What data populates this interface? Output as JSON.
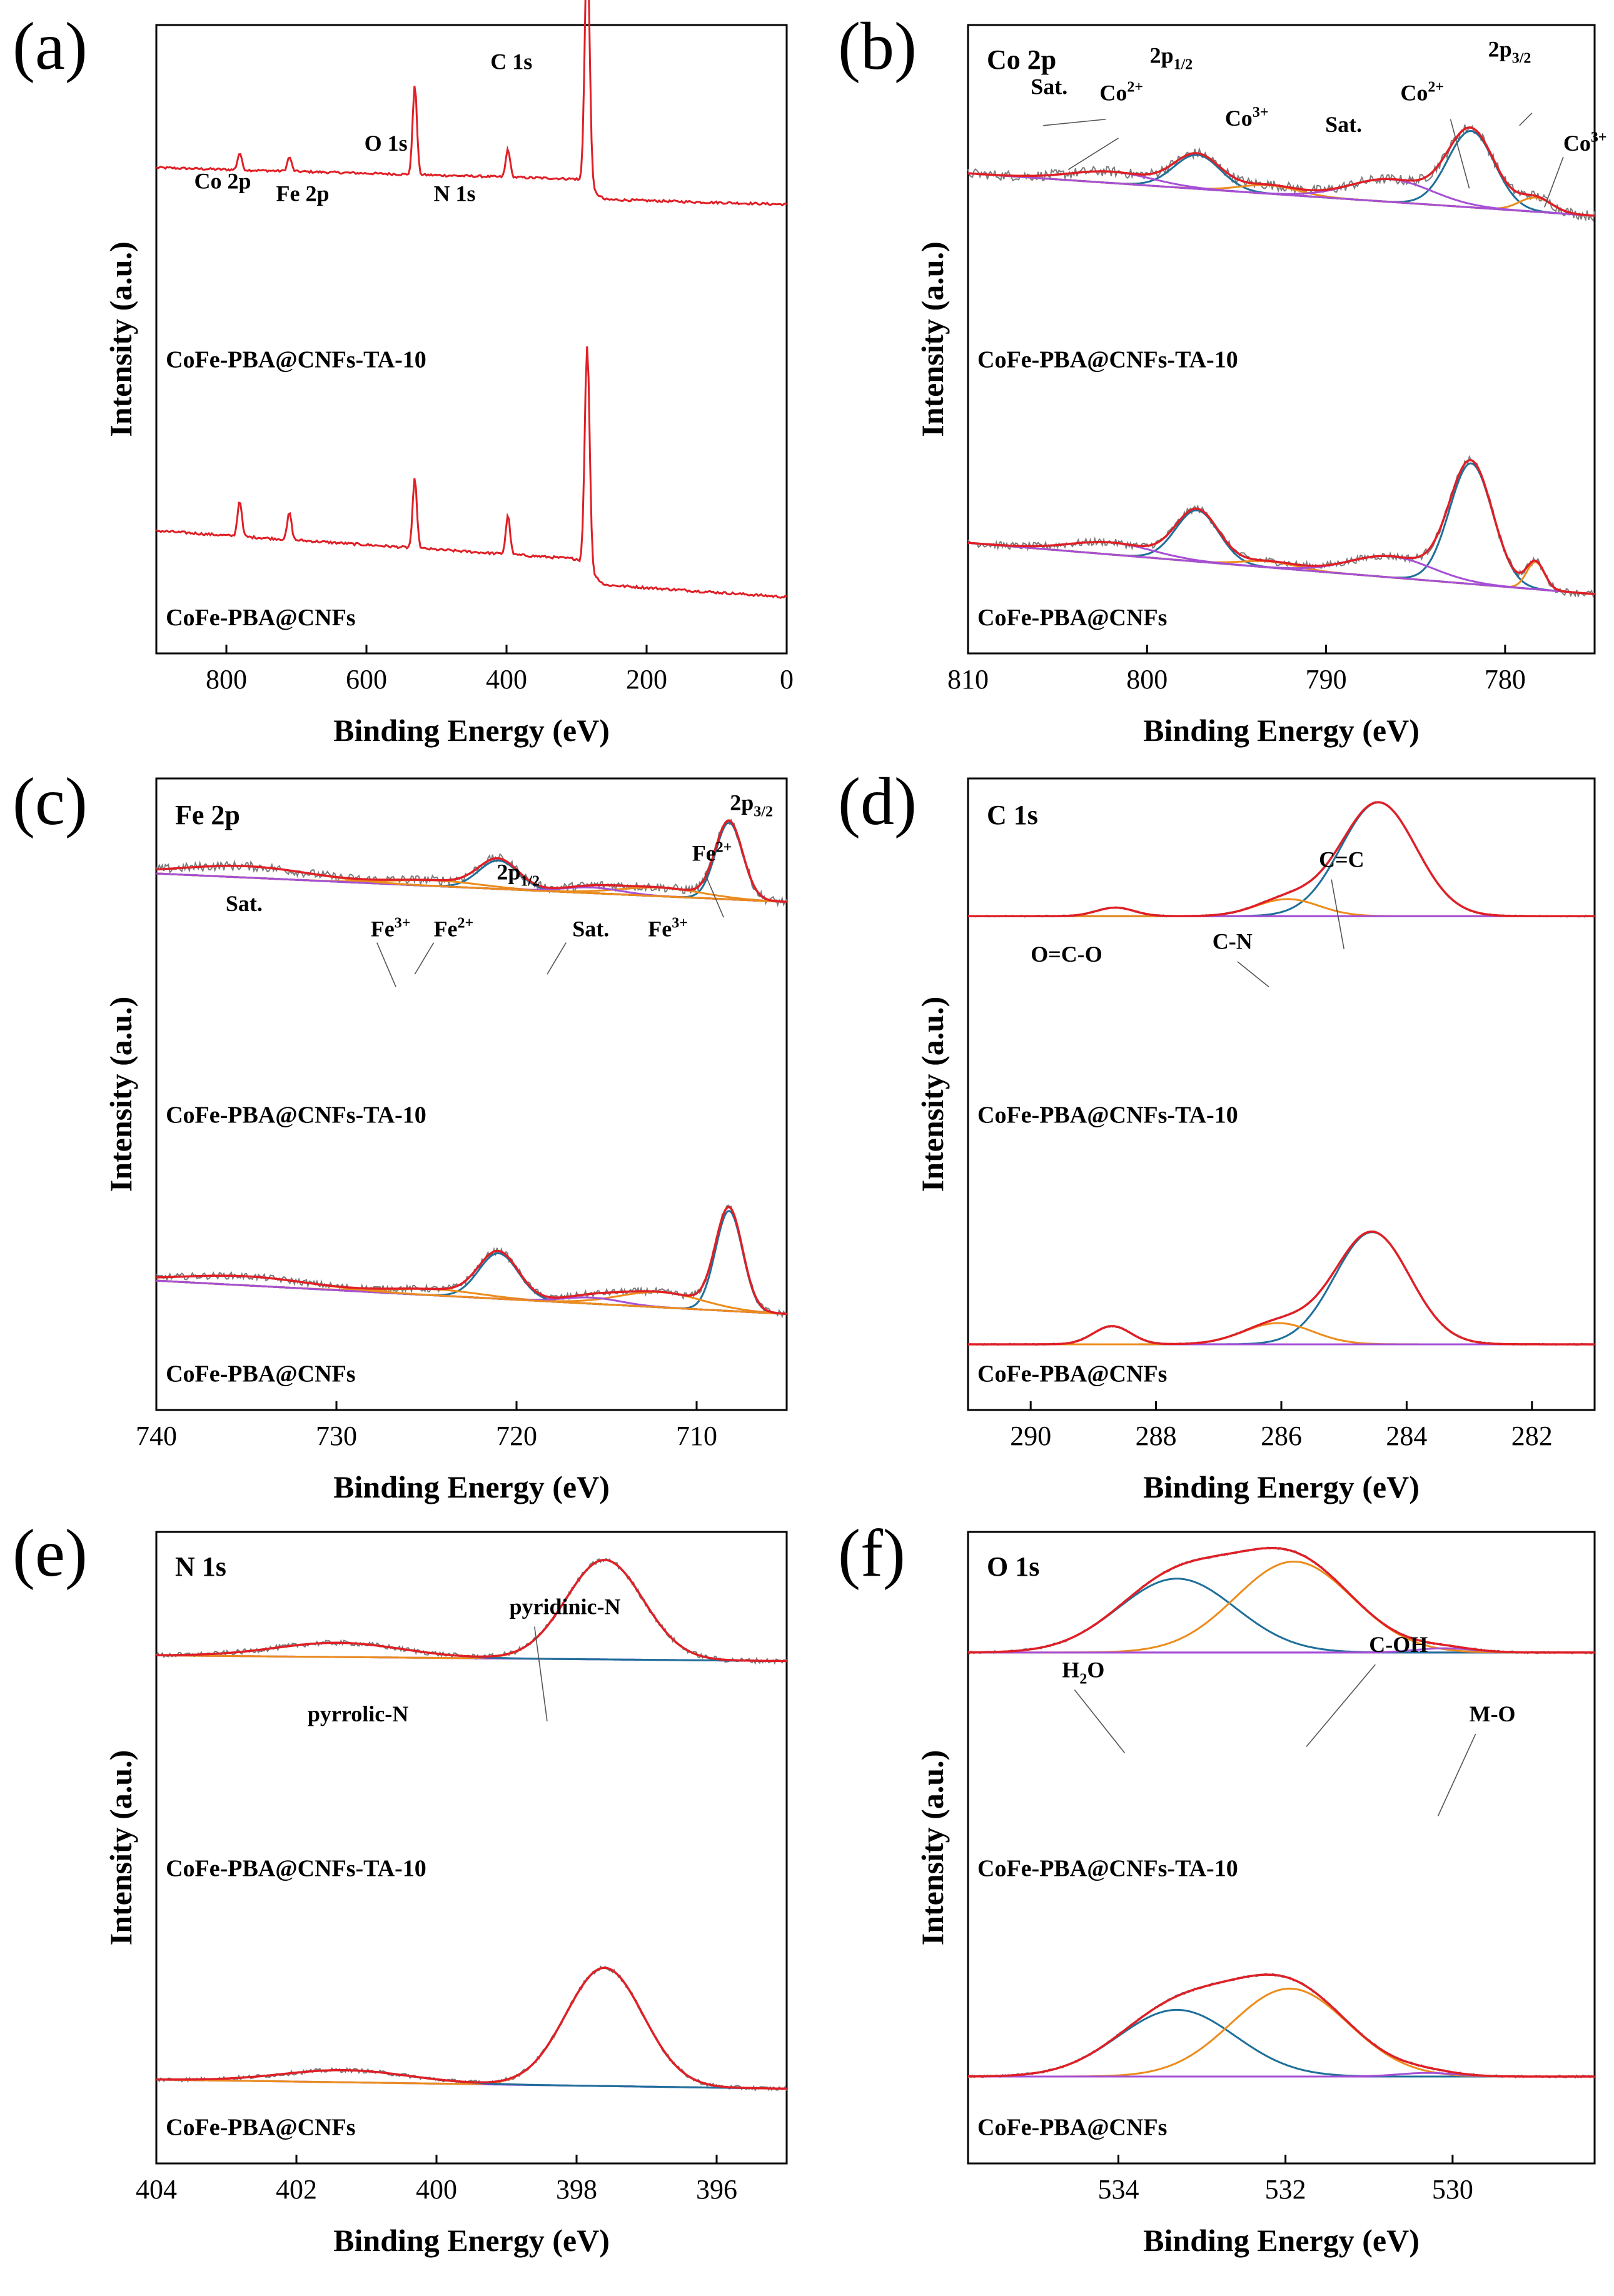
{
  "colors": {
    "raw": "#7a7a7a",
    "envelope": "#e01f26",
    "survey": "#e01f26",
    "background": "#8a3cd0",
    "blue": "#1f6f9a",
    "orange": "#ec8c1c",
    "violet": "#a64fd6",
    "axis": "#000000"
  },
  "axis_xlabel": "Binding Energy (eV)",
  "axis_ylabel": "Intensity (a.u.)",
  "chart_data": [
    {
      "id": "a",
      "panel_label": "(a)",
      "type": "line",
      "title": "",
      "xlabel": "Binding Energy (eV)",
      "ylabel": "Intensity (a.u.)",
      "xlim": [
        900,
        0
      ],
      "xticks": [
        800,
        600,
        400,
        200,
        0
      ],
      "xtick_labels": [
        "800",
        "600",
        "400",
        "200",
        "0"
      ],
      "series": [
        {
          "name": "CoFe-PBA@CNFs-TA-10",
          "kind": "survey",
          "baseline": 48,
          "slope_start": 6,
          "slope_end": 0,
          "peaks": [
            {
              "label": "Co 2p",
              "be": 781,
              "height": 6,
              "width": 3
            },
            {
              "label": "Fe 2p",
              "be": 710,
              "height": 5,
              "width": 3
            },
            {
              "label": "O 1s",
              "be": 531,
              "height": 32,
              "width": 3
            },
            {
              "label": "N 1s",
              "be": 398,
              "height": 10,
              "width": 3
            },
            {
              "label": "C 1s",
              "be": 284.8,
              "height": 86,
              "width": 3.5
            }
          ],
          "step_at": 300,
          "step_height": 7
        },
        {
          "name": "CoFe-PBA@CNFs",
          "kind": "survey",
          "baseline": 10,
          "slope_start": 14,
          "slope_end": 0,
          "peaks": [
            {
              "label": "Co 2p",
              "be": 781,
              "height": 12,
              "width": 3
            },
            {
              "label": "Fe 2p",
              "be": 710,
              "height": 9,
              "width": 3
            },
            {
              "label": "O 1s",
              "be": 531,
              "height": 23,
              "width": 3
            },
            {
              "label": "N 1s",
              "be": 398,
              "height": 13,
              "width": 3
            },
            {
              "label": "C 1s",
              "be": 284.8,
              "height": 74,
              "width": 3.5
            }
          ],
          "step_at": 300,
          "step_height": 8
        }
      ],
      "series_labels": [
        "CoFe-PBA@CNFs-TA-10",
        "CoFe-PBA@CNFs"
      ],
      "annotations": [
        "C 1s",
        "O 1s",
        "N 1s",
        "Co 2p",
        "Fe 2p"
      ]
    },
    {
      "id": "b",
      "panel_label": "(b)",
      "type": "line",
      "title": "Co 2p",
      "xlabel": "Binding Energy (eV)",
      "ylabel": "Intensity (a.u.)",
      "xlim": [
        810,
        775
      ],
      "xticks": [
        810,
        800,
        790,
        780
      ],
      "xtick_labels": [
        "810",
        "800",
        "790",
        "780"
      ],
      "series": [
        {
          "name": "CoFe-PBA@CNFs-TA-10",
          "bg_start": 52,
          "bg_end": 37,
          "noise": 1.8,
          "components": [
            {
              "color": "blue",
              "center": 781.9,
              "height": 27,
              "width": 1.3
            },
            {
              "color": "blue",
              "center": 797.2,
              "height": 12,
              "width": 1.3
            },
            {
              "color": "orange",
              "center": 778.3,
              "height": 5,
              "width": 0.9
            },
            {
              "color": "orange",
              "center": 793.2,
              "height": 3,
              "width": 1.6
            },
            {
              "color": "violet",
              "center": 786.4,
              "height": 8,
              "width": 2.3
            },
            {
              "color": "violet",
              "center": 802.0,
              "height": 4,
              "width": 2.3
            }
          ]
        },
        {
          "name": "CoFe-PBA@CNFs",
          "bg_start": 20,
          "bg_end": 3,
          "noise": 1.2,
          "components": [
            {
              "color": "blue",
              "center": 781.9,
              "height": 40,
              "width": 1.2
            },
            {
              "color": "blue",
              "center": 797.2,
              "height": 17,
              "width": 1.2
            },
            {
              "color": "orange",
              "center": 778.3,
              "height": 9,
              "width": 0.5
            },
            {
              "color": "orange",
              "center": 793.2,
              "height": 2,
              "width": 1.5
            },
            {
              "color": "violet",
              "center": 786.4,
              "height": 7,
              "width": 2.3
            },
            {
              "color": "violet",
              "center": 802.0,
              "height": 4,
              "width": 2.3
            }
          ]
        }
      ],
      "series_labels": [
        "CoFe-PBA@CNFs-TA-10",
        "CoFe-PBA@CNFs"
      ],
      "annotations": [
        "Sat.",
        "Co2+",
        "2p1/2",
        "Co3+",
        "Sat.",
        "Co2+",
        "2p3/2",
        "Co3+"
      ]
    },
    {
      "id": "c",
      "panel_label": "(c)",
      "type": "line",
      "title": "Fe 2p",
      "xlabel": "Binding Energy (eV)",
      "ylabel": "Intensity (a.u.)",
      "xlim": [
        740,
        705
      ],
      "xticks": [
        740,
        730,
        720,
        710
      ],
      "xtick_labels": [
        "740",
        "730",
        "720",
        "710"
      ],
      "series": [
        {
          "name": "CoFe-PBA@CNFs-TA-10",
          "bg_start": 71,
          "bg_end": 61,
          "noise": 1.6,
          "components": [
            {
              "color": "blue",
              "center": 708.2,
              "height": 27,
              "width": 0.75
            },
            {
              "color": "blue",
              "center": 721.0,
              "height": 10,
              "width": 1.1
            },
            {
              "color": "orange",
              "center": 712.0,
              "height": 3,
              "width": 2.3
            },
            {
              "color": "orange",
              "center": 724.5,
              "height": 2,
              "width": 2.5
            },
            {
              "color": "violet",
              "center": 715.8,
              "height": 2,
              "width": 1.6
            },
            {
              "color": "orange",
              "center": 735.0,
              "height": 4,
              "width": 3.5
            }
          ]
        },
        {
          "name": "CoFe-PBA@CNFs",
          "bg_start": 26,
          "bg_end": 15,
          "noise": 1.1,
          "components": [
            {
              "color": "blue",
              "center": 708.2,
              "height": 33,
              "width": 0.75
            },
            {
              "color": "blue",
              "center": 721.0,
              "height": 15,
              "width": 1.1
            },
            {
              "color": "orange",
              "center": 712.0,
              "height": 5,
              "width": 2.3
            },
            {
              "color": "orange",
              "center": 724.5,
              "height": 2,
              "width": 2.5
            },
            {
              "color": "violet",
              "center": 715.8,
              "height": 2,
              "width": 1.6
            },
            {
              "color": "orange",
              "center": 735.0,
              "height": 3,
              "width": 3.5
            }
          ]
        }
      ],
      "series_labels": [
        "CoFe-PBA@CNFs-TA-10",
        "CoFe-PBA@CNFs"
      ],
      "annotations": [
        "2p3/2",
        "Fe2+",
        "2p1/2",
        "Sat.",
        "Fe3+",
        "Fe2+",
        "Sat.",
        "Fe3+"
      ]
    },
    {
      "id": "d",
      "panel_label": "(d)",
      "type": "line",
      "title": "C 1s",
      "xlabel": "Binding Energy (eV)",
      "ylabel": "Intensity (a.u.)",
      "xlim": [
        291,
        281
      ],
      "xticks": [
        290,
        288,
        286,
        284,
        282
      ],
      "xtick_labels": [
        "290",
        "288",
        "286",
        "284",
        "282"
      ],
      "series": [
        {
          "name": "CoFe-PBA@CNFs-TA-10",
          "bg_start": 56,
          "bg_end": 56,
          "noise": 0.3,
          "components": [
            {
              "color": "blue",
              "center": 284.45,
              "height": 40,
              "width": 0.6
            },
            {
              "color": "orange",
              "center": 285.9,
              "height": 6,
              "width": 0.5
            },
            {
              "color": "violet",
              "center": 288.65,
              "height": 3,
              "width": 0.3
            }
          ]
        },
        {
          "name": "CoFe-PBA@CNFs",
          "bg_start": 5,
          "bg_end": 5,
          "noise": 0.3,
          "components": [
            {
              "color": "blue",
              "center": 284.55,
              "height": 37,
              "width": 0.6
            },
            {
              "color": "orange",
              "center": 286.05,
              "height": 7,
              "width": 0.55
            },
            {
              "color": "violet",
              "center": 288.7,
              "height": 6,
              "width": 0.3
            }
          ]
        }
      ],
      "series_labels": [
        "CoFe-PBA@CNFs-TA-10",
        "CoFe-PBA@CNFs"
      ],
      "annotations": [
        "C=C",
        "C-N",
        "O=C-O"
      ]
    },
    {
      "id": "e",
      "panel_label": "(e)",
      "type": "line",
      "title": "N 1s",
      "xlabel": "Binding Energy (eV)",
      "ylabel": "Intensity (a.u.)",
      "xlim": [
        404,
        395
      ],
      "xticks": [
        404,
        402,
        400,
        398,
        396
      ],
      "xtick_labels": [
        "404",
        "402",
        "400",
        "398",
        "396"
      ],
      "series": [
        {
          "name": "CoFe-PBA@CNFs-TA-10",
          "bg_start": 61,
          "bg_end": 59,
          "noise": 0.9,
          "components": [
            {
              "color": "orange",
              "center": 397.6,
              "height": 35,
              "width": 0.55
            },
            {
              "color": "blue",
              "center": 401.4,
              "height": 5,
              "width": 0.9
            }
          ]
        },
        {
          "name": "CoFe-PBA@CNFs",
          "bg_start": 11,
          "bg_end": 8,
          "noise": 0.7,
          "components": [
            {
              "color": "orange",
              "center": 397.6,
              "height": 39,
              "width": 0.55
            },
            {
              "color": "blue",
              "center": 401.3,
              "height": 4,
              "width": 0.9
            }
          ]
        }
      ],
      "series_labels": [
        "CoFe-PBA@CNFs-TA-10",
        "CoFe-PBA@CNFs"
      ],
      "annotations": [
        "pyridinic-N",
        "pyrrolic-N"
      ]
    },
    {
      "id": "f",
      "panel_label": "(f)",
      "type": "line",
      "title": "O 1s",
      "xlabel": "Binding Energy (eV)",
      "ylabel": "Intensity (a.u.)",
      "xlim": [
        535.8,
        528.3
      ],
      "xticks": [
        534,
        532,
        530
      ],
      "xtick_labels": [
        "534",
        "532",
        "530"
      ],
      "series": [
        {
          "name": "CoFe-PBA@CNFs-TA-10",
          "bg_start": 62,
          "bg_end": 62,
          "noise": 0.4,
          "components": [
            {
              "color": "blue",
              "center": 533.3,
              "height": 26,
              "width": 0.7
            },
            {
              "color": "orange",
              "center": 531.9,
              "height": 32,
              "width": 0.7
            },
            {
              "color": "violet",
              "center": 530.1,
              "height": 1.5,
              "width": 0.35
            }
          ]
        },
        {
          "name": "CoFe-PBA@CNFs",
          "bg_start": 12,
          "bg_end": 12,
          "noise": 0.4,
          "components": [
            {
              "color": "blue",
              "center": 533.3,
              "height": 22,
              "width": 0.7
            },
            {
              "color": "orange",
              "center": 531.95,
              "height": 29,
              "width": 0.7
            },
            {
              "color": "violet",
              "center": 530.3,
              "height": 1.2,
              "width": 0.35
            }
          ]
        }
      ],
      "series_labels": [
        "CoFe-PBA@CNFs-TA-10",
        "CoFe-PBA@CNFs"
      ],
      "annotations": [
        "C-OH",
        "H2O",
        "M-O"
      ]
    }
  ]
}
